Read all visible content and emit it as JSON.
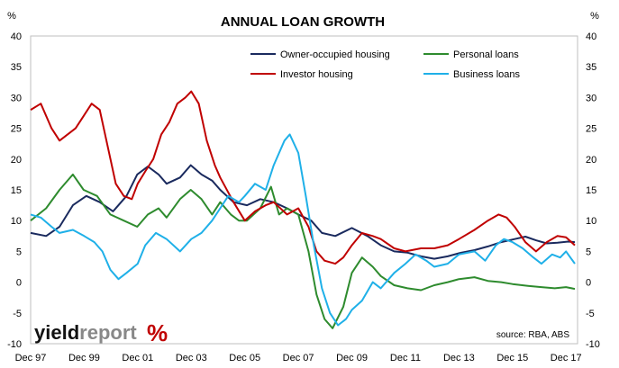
{
  "chart_data": {
    "type": "line",
    "title": "ANNUAL LOAN GROWTH",
    "y_unit_left": "%",
    "y_unit_right": "%",
    "ylim": [
      -10,
      40
    ],
    "yticks": [
      -10,
      -5,
      0,
      5,
      10,
      15,
      20,
      25,
      30,
      35,
      40
    ],
    "x_tick_labels": [
      "Dec 97",
      "Dec 99",
      "Dec 01",
      "Dec 03",
      "Dec 05",
      "Dec 07",
      "Dec 09",
      "Dec 11",
      "Dec 13",
      "Dec 15",
      "Dec 17"
    ],
    "x_tick_years": [
      1997.92,
      1999.92,
      2001.92,
      2003.92,
      2005.92,
      2007.92,
      2009.92,
      2011.92,
      2013.92,
      2015.92,
      2017.92
    ],
    "xlim": [
      1997.92,
      2018.35
    ],
    "grid": false,
    "legend_position": "top-right",
    "source": "source: RBA, ABS",
    "series": [
      {
        "name": "Owner-occupied housing",
        "color": "#1a2a5e",
        "points": [
          [
            1997.92,
            8
          ],
          [
            1998.5,
            7.5
          ],
          [
            1999.0,
            9
          ],
          [
            1999.5,
            12.5
          ],
          [
            2000.0,
            14
          ],
          [
            2000.5,
            13
          ],
          [
            2001.0,
            11.5
          ],
          [
            2001.5,
            14
          ],
          [
            2001.9,
            17.5
          ],
          [
            2002.3,
            18.8
          ],
          [
            2002.7,
            17.5
          ],
          [
            2003.0,
            16
          ],
          [
            2003.5,
            17
          ],
          [
            2003.9,
            19
          ],
          [
            2004.3,
            17.5
          ],
          [
            2004.7,
            16.5
          ],
          [
            2005.0,
            15
          ],
          [
            2005.5,
            13
          ],
          [
            2006.0,
            12.5
          ],
          [
            2006.5,
            13.5
          ],
          [
            2007.0,
            13
          ],
          [
            2007.5,
            12
          ],
          [
            2007.92,
            11
          ],
          [
            2008.4,
            10
          ],
          [
            2008.8,
            8
          ],
          [
            2009.3,
            7.5
          ],
          [
            2009.92,
            8.8
          ],
          [
            2010.5,
            7.5
          ],
          [
            2011.0,
            6
          ],
          [
            2011.5,
            5
          ],
          [
            2012.0,
            4.8
          ],
          [
            2012.5,
            4.2
          ],
          [
            2013.0,
            3.8
          ],
          [
            2013.5,
            4.2
          ],
          [
            2014.0,
            4.8
          ],
          [
            2014.5,
            5.2
          ],
          [
            2015.0,
            5.8
          ],
          [
            2015.5,
            6.5
          ],
          [
            2016.0,
            7
          ],
          [
            2016.4,
            7.4
          ],
          [
            2016.8,
            6.8
          ],
          [
            2017.2,
            6.3
          ],
          [
            2017.6,
            6.4
          ],
          [
            2018.0,
            6.6
          ],
          [
            2018.25,
            6.5
          ]
        ]
      },
      {
        "name": "Personal loans",
        "color": "#2e8b2e",
        "points": [
          [
            1997.92,
            10
          ],
          [
            1998.5,
            12
          ],
          [
            1999.0,
            15
          ],
          [
            1999.5,
            17.5
          ],
          [
            1999.9,
            15
          ],
          [
            2000.4,
            14
          ],
          [
            2000.9,
            11
          ],
          [
            2001.4,
            10
          ],
          [
            2001.9,
            9
          ],
          [
            2002.3,
            11
          ],
          [
            2002.7,
            12
          ],
          [
            2003.0,
            10.5
          ],
          [
            2003.5,
            13.5
          ],
          [
            2003.9,
            15
          ],
          [
            2004.3,
            13.5
          ],
          [
            2004.7,
            11
          ],
          [
            2005.0,
            13
          ],
          [
            2005.4,
            11
          ],
          [
            2005.7,
            10
          ],
          [
            2006.0,
            10
          ],
          [
            2006.5,
            12
          ],
          [
            2006.9,
            15.5
          ],
          [
            2007.2,
            11
          ],
          [
            2007.5,
            12
          ],
          [
            2007.92,
            11
          ],
          [
            2008.3,
            5
          ],
          [
            2008.6,
            -2
          ],
          [
            2008.9,
            -6
          ],
          [
            2009.2,
            -7.5
          ],
          [
            2009.6,
            -4
          ],
          [
            2009.92,
            1.5
          ],
          [
            2010.3,
            4
          ],
          [
            2010.7,
            2.5
          ],
          [
            2011.0,
            1
          ],
          [
            2011.5,
            -0.5
          ],
          [
            2012.0,
            -1
          ],
          [
            2012.5,
            -1.3
          ],
          [
            2013.0,
            -0.5
          ],
          [
            2013.5,
            0
          ],
          [
            2013.92,
            0.5
          ],
          [
            2014.5,
            0.8
          ],
          [
            2015.0,
            0.2
          ],
          [
            2015.5,
            0
          ],
          [
            2015.92,
            -0.3
          ],
          [
            2016.5,
            -0.6
          ],
          [
            2017.0,
            -0.8
          ],
          [
            2017.5,
            -1
          ],
          [
            2017.92,
            -0.8
          ],
          [
            2018.25,
            -1.1
          ]
        ]
      },
      {
        "name": "Investor housing",
        "color": "#c00000",
        "points": [
          [
            1997.92,
            28
          ],
          [
            1998.3,
            29
          ],
          [
            1998.7,
            25
          ],
          [
            1999.0,
            23
          ],
          [
            1999.3,
            24
          ],
          [
            1999.6,
            25
          ],
          [
            1999.9,
            27
          ],
          [
            2000.2,
            29
          ],
          [
            2000.5,
            28
          ],
          [
            2000.8,
            22
          ],
          [
            2001.1,
            16
          ],
          [
            2001.4,
            14
          ],
          [
            2001.7,
            13.5
          ],
          [
            2001.92,
            16
          ],
          [
            2002.2,
            18
          ],
          [
            2002.5,
            20
          ],
          [
            2002.8,
            24
          ],
          [
            2003.1,
            26
          ],
          [
            2003.4,
            29
          ],
          [
            2003.7,
            30
          ],
          [
            2003.92,
            31
          ],
          [
            2004.2,
            29
          ],
          [
            2004.5,
            23
          ],
          [
            2004.8,
            19
          ],
          [
            2005.0,
            17
          ],
          [
            2005.5,
            13
          ],
          [
            2005.92,
            10
          ],
          [
            2006.3,
            11.5
          ],
          [
            2006.7,
            12.5
          ],
          [
            2007.0,
            13
          ],
          [
            2007.5,
            11
          ],
          [
            2007.92,
            12
          ],
          [
            2008.3,
            9
          ],
          [
            2008.6,
            5
          ],
          [
            2008.9,
            3.5
          ],
          [
            2009.3,
            3
          ],
          [
            2009.6,
            4
          ],
          [
            2009.92,
            6
          ],
          [
            2010.3,
            8
          ],
          [
            2010.7,
            7.5
          ],
          [
            2011.0,
            7
          ],
          [
            2011.5,
            5.5
          ],
          [
            2011.92,
            5
          ],
          [
            2012.5,
            5.5
          ],
          [
            2013.0,
            5.5
          ],
          [
            2013.5,
            6
          ],
          [
            2013.92,
            7
          ],
          [
            2014.5,
            8.5
          ],
          [
            2015.0,
            10
          ],
          [
            2015.4,
            11
          ],
          [
            2015.7,
            10.5
          ],
          [
            2016.0,
            9
          ],
          [
            2016.4,
            6.5
          ],
          [
            2016.8,
            5
          ],
          [
            2017.2,
            6.5
          ],
          [
            2017.6,
            7.5
          ],
          [
            2017.92,
            7.3
          ],
          [
            2018.25,
            6
          ]
        ]
      },
      {
        "name": "Business loans",
        "color": "#1fb0e8",
        "points": [
          [
            1997.92,
            11
          ],
          [
            1998.3,
            10.5
          ],
          [
            1998.7,
            9
          ],
          [
            1999.0,
            8
          ],
          [
            1999.5,
            8.5
          ],
          [
            1999.92,
            7.5
          ],
          [
            2000.3,
            6.5
          ],
          [
            2000.6,
            5
          ],
          [
            2000.9,
            2
          ],
          [
            2001.2,
            0.5
          ],
          [
            2001.5,
            1.5
          ],
          [
            2001.92,
            3
          ],
          [
            2002.2,
            6
          ],
          [
            2002.6,
            8
          ],
          [
            2003.0,
            7
          ],
          [
            2003.5,
            5
          ],
          [
            2003.92,
            7
          ],
          [
            2004.3,
            8
          ],
          [
            2004.7,
            10
          ],
          [
            2005.0,
            12
          ],
          [
            2005.3,
            14
          ],
          [
            2005.7,
            13
          ],
          [
            2005.92,
            14
          ],
          [
            2006.3,
            16
          ],
          [
            2006.7,
            15
          ],
          [
            2007.0,
            19
          ],
          [
            2007.4,
            23
          ],
          [
            2007.6,
            24
          ],
          [
            2007.92,
            21
          ],
          [
            2008.2,
            14
          ],
          [
            2008.5,
            6
          ],
          [
            2008.8,
            -1
          ],
          [
            2009.1,
            -5
          ],
          [
            2009.4,
            -7
          ],
          [
            2009.7,
            -6
          ],
          [
            2009.92,
            -4.5
          ],
          [
            2010.3,
            -3
          ],
          [
            2010.7,
            0
          ],
          [
            2011.0,
            -1
          ],
          [
            2011.5,
            1.5
          ],
          [
            2011.92,
            3
          ],
          [
            2012.3,
            4.5
          ],
          [
            2012.7,
            3.5
          ],
          [
            2013.0,
            2.5
          ],
          [
            2013.5,
            3
          ],
          [
            2013.92,
            4.5
          ],
          [
            2014.5,
            5
          ],
          [
            2014.9,
            3.5
          ],
          [
            2015.3,
            6
          ],
          [
            2015.6,
            7
          ],
          [
            2015.92,
            6.5
          ],
          [
            2016.3,
            5.5
          ],
          [
            2016.7,
            4
          ],
          [
            2017.0,
            3
          ],
          [
            2017.4,
            4.5
          ],
          [
            2017.7,
            4
          ],
          [
            2017.92,
            5
          ],
          [
            2018.25,
            3
          ]
        ]
      }
    ]
  },
  "logo": {
    "part1": "yield",
    "part2": "report",
    "mark": "%"
  }
}
